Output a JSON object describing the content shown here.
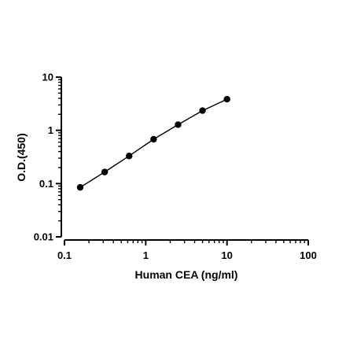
{
  "chart_data": {
    "type": "scatter",
    "title": "",
    "xlabel": "Human CEA (ng/ml)",
    "ylabel": "O.D.(450)",
    "xscale": "log",
    "yscale": "log",
    "xlim": [
      0.1,
      100
    ],
    "ylim": [
      0.01,
      10
    ],
    "xticks": [
      "0.1",
      "1",
      "10",
      "100"
    ],
    "yticks": [
      "0.01",
      "0.1",
      "1",
      "10"
    ],
    "grid": false,
    "legend": "none",
    "color": "#000000",
    "series": [
      {
        "x": [
          0.156,
          0.3125,
          0.625,
          1.25,
          2.5,
          5,
          10
        ],
        "y": [
          0.085,
          0.165,
          0.33,
          0.68,
          1.28,
          2.35,
          3.85
        ]
      }
    ]
  }
}
